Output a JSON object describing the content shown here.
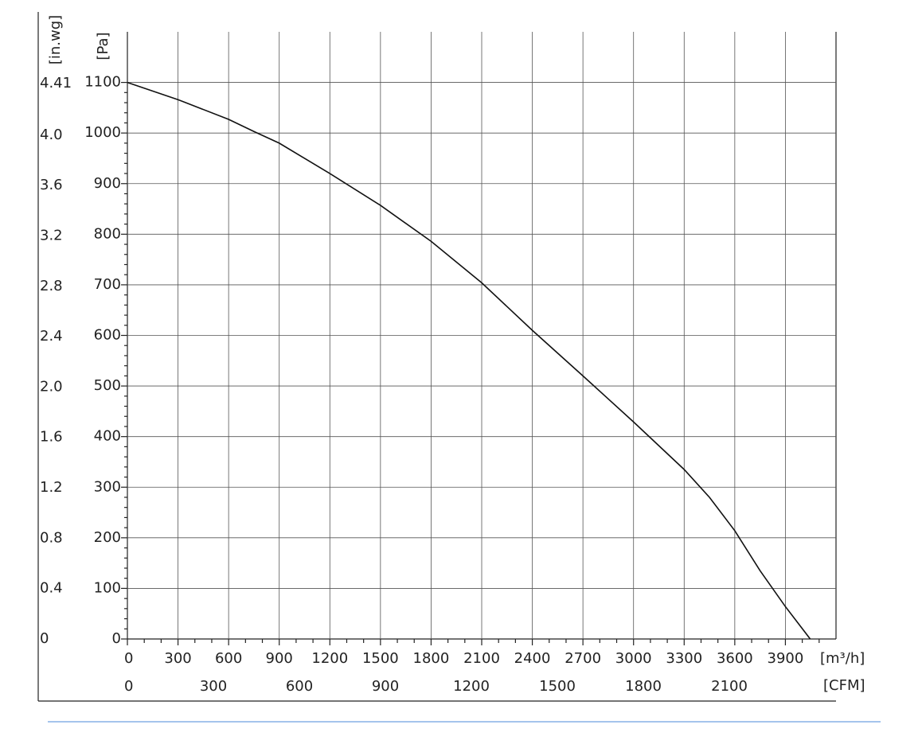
{
  "chart_data": {
    "type": "line",
    "x": [
      0,
      300,
      600,
      750,
      900,
      1200,
      1500,
      1800,
      2100,
      2400,
      2700,
      3000,
      3300,
      3450,
      3600,
      3750,
      3900,
      4047
    ],
    "values": [
      1100,
      1066,
      1027,
      1003,
      980,
      920,
      857,
      786,
      704,
      610,
      520,
      429,
      335,
      280,
      214,
      135,
      64,
      0
    ],
    "color": "#111111",
    "xlim": [
      0,
      4200
    ],
    "xticks": [
      0,
      300,
      600,
      900,
      1200,
      1500,
      1800,
      2100,
      2400,
      2700,
      3000,
      3300,
      3600,
      3900
    ],
    "x_label": "[m³/h]",
    "x2lim": [
      0,
      2472
    ],
    "x2ticks": [
      0,
      300,
      600,
      900,
      1200,
      1500,
      1800,
      2100
    ],
    "x2_label": "[CFM]",
    "ylim": [
      0,
      1200
    ],
    "yticks": [
      0,
      100,
      200,
      300,
      400,
      500,
      600,
      700,
      800,
      900,
      1000,
      1100
    ],
    "y_label": "[Pa]",
    "y2lim": [
      0,
      4.82
    ],
    "y2ticks": [
      0,
      0.4,
      0.8,
      1.2,
      1.6,
      {
        "value": 2,
        "label": "2.0"
      },
      2.4,
      2.8,
      3.2,
      3.6,
      {
        "value": 4,
        "label": "4.0"
      },
      4.41
    ],
    "y2_label": "[in.wg]",
    "grid": true
  }
}
